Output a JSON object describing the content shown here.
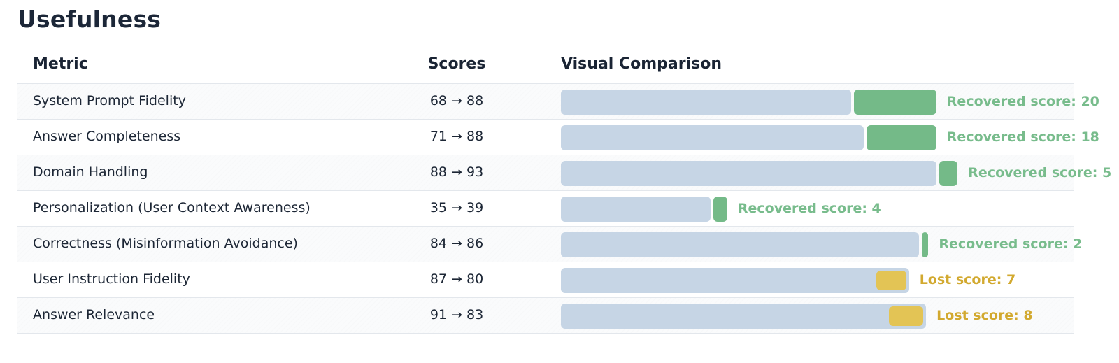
{
  "title": "Usefulness",
  "table": {
    "headers": {
      "metric": "Metric",
      "scores": "Scores",
      "visual": "Visual Comparison"
    }
  },
  "colors": {
    "base_bar": "#c6d5e5",
    "gain": "#74ba88",
    "loss": "#e3c455"
  },
  "chart_data": {
    "type": "bar",
    "title": "Usefulness",
    "value_range": [
      0,
      100
    ],
    "rows": [
      {
        "metric": "System Prompt Fidelity",
        "before": 68,
        "after": 88,
        "scores_text": "68 → 88",
        "change_text": "Recovered score: 20",
        "direction": "gain"
      },
      {
        "metric": "Answer Completeness",
        "before": 71,
        "after": 88,
        "scores_text": "71 → 88",
        "change_text": "Recovered score: 18",
        "direction": "gain"
      },
      {
        "metric": "Domain Handling",
        "before": 88,
        "after": 93,
        "scores_text": "88 → 93",
        "change_text": "Recovered score: 5",
        "direction": "gain"
      },
      {
        "metric": "Personalization (User Context Awareness)",
        "before": 35,
        "after": 39,
        "scores_text": "35 → 39",
        "change_text": "Recovered score: 4",
        "direction": "gain"
      },
      {
        "metric": "Correctness (Misinformation Avoidance)",
        "before": 84,
        "after": 86,
        "scores_text": "84 → 86",
        "change_text": "Recovered score: 2",
        "direction": "gain"
      },
      {
        "metric": "User Instruction Fidelity",
        "before": 87,
        "after": 80,
        "scores_text": "87 → 80",
        "change_text": "Lost score: 7",
        "direction": "loss"
      },
      {
        "metric": "Answer Relevance",
        "before": 91,
        "after": 83,
        "scores_text": "91 → 83",
        "change_text": "Lost score: 8",
        "direction": "loss"
      }
    ]
  }
}
